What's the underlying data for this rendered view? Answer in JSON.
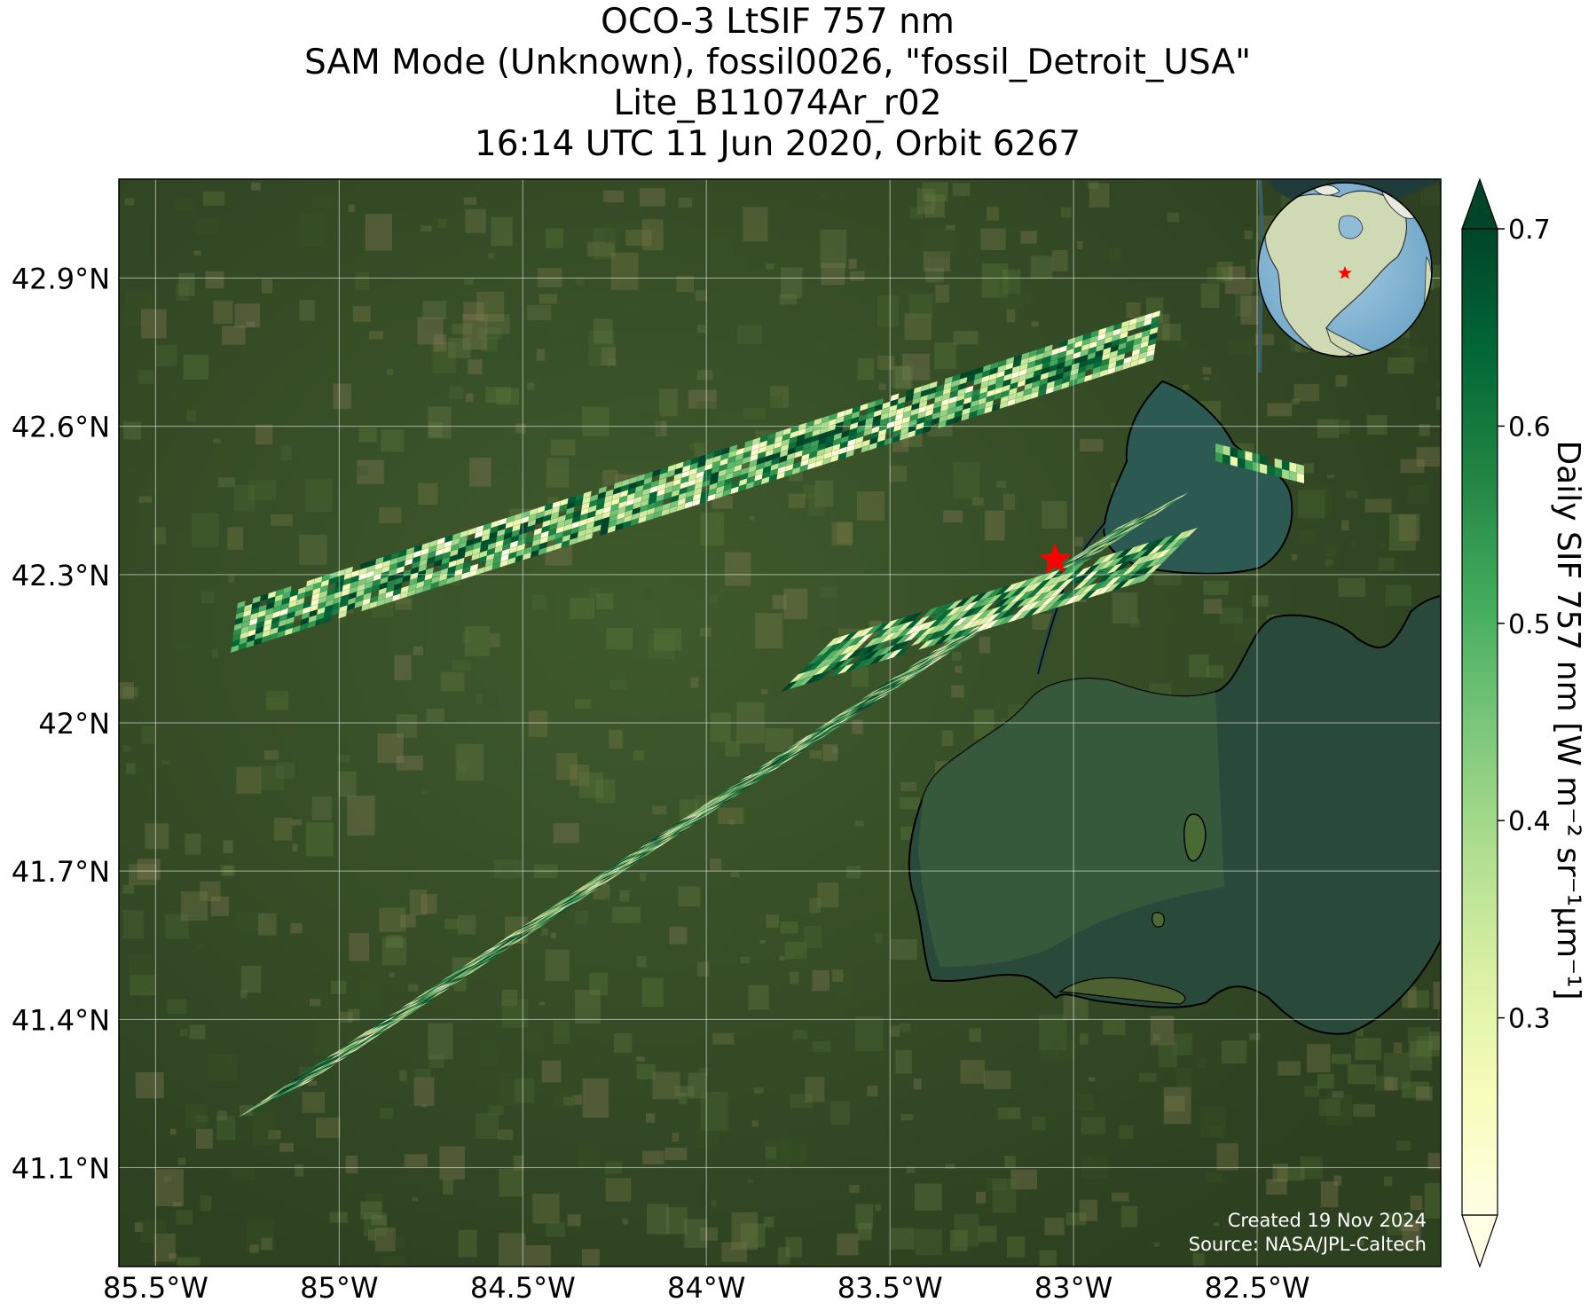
{
  "title": {
    "line1": "OCO-3 LtSIF 757 nm",
    "line2": "SAM Mode (Unknown), fossil0026, \"fossil_Detroit_USA\"",
    "line3": "Lite_B11074Ar_r02",
    "line4": "16:14 UTC 11 Jun 2020, Orbit 6267"
  },
  "map": {
    "lon_range": [
      -85.6,
      -82.0
    ],
    "lat_range": [
      40.9,
      43.1
    ],
    "lon_ticks": [
      {
        "value": -85.5,
        "label": "85.5°W"
      },
      {
        "value": -85.0,
        "label": "85°W"
      },
      {
        "value": -84.5,
        "label": "84.5°W"
      },
      {
        "value": -84.0,
        "label": "84°W"
      },
      {
        "value": -83.5,
        "label": "83.5°W"
      },
      {
        "value": -83.0,
        "label": "83°W"
      },
      {
        "value": -82.5,
        "label": "82.5°W"
      }
    ],
    "lat_ticks": [
      {
        "value": 42.9,
        "label": "42.9°N"
      },
      {
        "value": 42.6,
        "label": "42.6°N"
      },
      {
        "value": 42.3,
        "label": "42.3°N"
      },
      {
        "value": 42.0,
        "label": "42°N"
      },
      {
        "value": 41.7,
        "label": "41.7°N"
      },
      {
        "value": 41.4,
        "label": "41.4°N"
      },
      {
        "value": 41.1,
        "label": "41.1°N"
      }
    ],
    "target_marker": {
      "lon": -83.05,
      "lat": 42.33,
      "color": "#ff0000"
    },
    "grid": true,
    "basemap": "satellite imagery",
    "inset_globe": {
      "position": "top-right",
      "marker_color": "#ff0000"
    }
  },
  "colorbar": {
    "label": "Daily SIF 757 nm [W m⁻² sr⁻¹μm⁻¹]",
    "min": 0.2,
    "max": 0.7,
    "colormap": "YlGn",
    "extend": "both",
    "ticks": [
      {
        "value": 0.3,
        "label": "0.3"
      },
      {
        "value": 0.4,
        "label": "0.4"
      },
      {
        "value": 0.5,
        "label": "0.5"
      },
      {
        "value": 0.6,
        "label": "0.6"
      },
      {
        "value": 0.7,
        "label": "0.7"
      }
    ]
  },
  "credits": {
    "created": "Created 19 Nov 2024",
    "source": "Source: NASA/JPL-Caltech"
  }
}
